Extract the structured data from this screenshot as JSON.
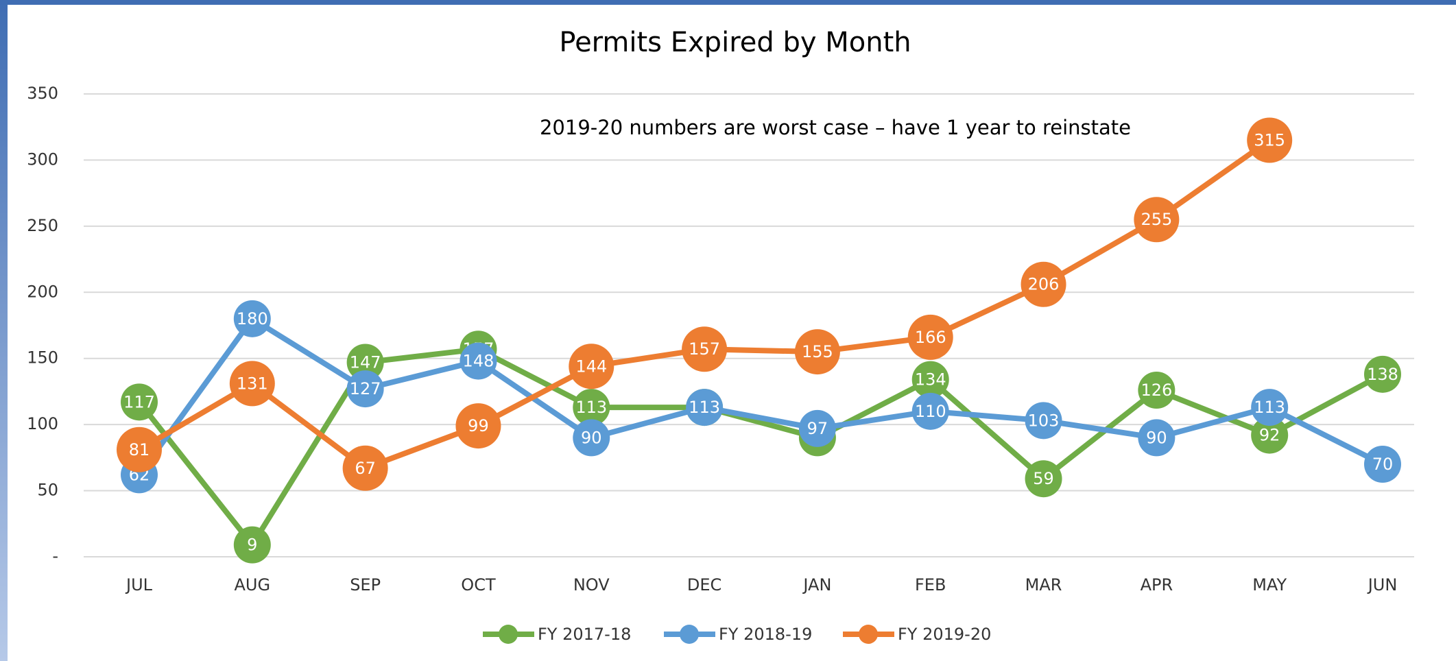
{
  "chart_data": {
    "type": "line",
    "title": "Permits Expired by Month",
    "annotation": "2019-20 numbers are worst case – have 1 year to reinstate",
    "categories": [
      "JUL",
      "AUG",
      "SEP",
      "OCT",
      "NOV",
      "DEC",
      "JAN",
      "FEB",
      "MAR",
      "APR",
      "MAY",
      "JUN"
    ],
    "series": [
      {
        "name": "FY 2017-18",
        "color": "#70ad47",
        "values": [
          117,
          9,
          147,
          157,
          113,
          113,
          90,
          134,
          59,
          126,
          92,
          138
        ]
      },
      {
        "name": "FY 2018-19",
        "color": "#5b9bd5",
        "values": [
          62,
          180,
          127,
          148,
          90,
          113,
          97,
          110,
          103,
          90,
          113,
          70
        ]
      },
      {
        "name": "FY 2019-20",
        "color": "#ed7d31",
        "values": [
          81,
          131,
          67,
          99,
          144,
          157,
          155,
          166,
          206,
          255,
          315,
          null
        ]
      }
    ],
    "ylim": [
      0,
      350
    ],
    "yticks": [
      {
        "value": 0,
        "label": "-"
      },
      50,
      100,
      150,
      200,
      250,
      300,
      350
    ],
    "grid": true,
    "legend": "bottom"
  }
}
